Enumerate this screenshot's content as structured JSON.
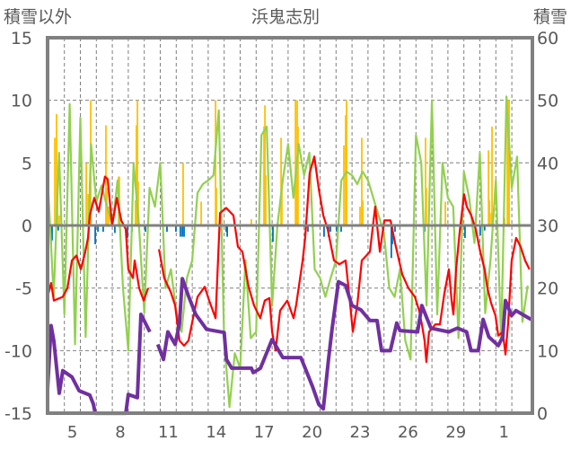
{
  "chart_data": {
    "type": "line",
    "title": "浜鬼志別",
    "ylabel_left": "積雪以外",
    "ylabel_right": "積雪",
    "ylim_left": [
      -15,
      15
    ],
    "ylim_right": [
      0,
      60
    ],
    "xlim_day": [
      3.95,
      34.2
    ],
    "grid": true,
    "y_ticks_left": [
      "15",
      "10",
      "5",
      "0",
      "-5",
      "-10",
      "-15"
    ],
    "y_ticks_left_values": [
      15,
      10,
      5,
      0,
      -5,
      -10,
      -15
    ],
    "y_ticks_right": [
      "60",
      "50",
      "40",
      "30",
      "20",
      "10",
      "0"
    ],
    "y_ticks_right_values": [
      60,
      50,
      40,
      30,
      20,
      10,
      0
    ],
    "x_ticks": [
      {
        "day": 5,
        "label": "5"
      },
      {
        "day": 8,
        "label": "8"
      },
      {
        "day": 11,
        "label": "11"
      },
      {
        "day": 14,
        "label": "14"
      },
      {
        "day": 17,
        "label": "17"
      },
      {
        "day": 20,
        "label": "20"
      },
      {
        "day": 23,
        "label": "23"
      },
      {
        "day": 26,
        "label": "26"
      },
      {
        "day": 29,
        "label": "29"
      },
      {
        "day": 32,
        "label": "1"
      }
    ],
    "colors": {
      "red": "#FF0000",
      "green": "#92D050",
      "purple": "#7030A0",
      "yellow": "#FFC000",
      "blue": "#0070C0",
      "axis": "#808080",
      "text": "#595959"
    },
    "series": [
      {
        "name": "green",
        "axis": "left",
        "start_day": 4.0,
        "step_day": 0.3333,
        "values": [
          2.6,
          -5.7,
          5.8,
          -7.1,
          9.7,
          -9.5,
          8.6,
          -8.9,
          6.5,
          1.9,
          3.2,
          1.5,
          0,
          3.6,
          -5,
          -10,
          5,
          0,
          -7,
          3,
          1.5,
          5,
          -5,
          -3.5,
          -6.9,
          -8.5,
          -4.2,
          -2.8,
          2.6,
          3.3,
          3.6,
          4,
          9.2,
          -9.2,
          -14.5,
          -10.2,
          -11.4,
          -2.8,
          -9,
          -8.5,
          7.2,
          7.9,
          -6.4,
          0,
          3.6,
          6.5,
          2.2,
          6.5,
          4,
          5.8,
          -3.5,
          -4.2,
          -5.7,
          -4.2,
          -2.8,
          3.6,
          4.3,
          4,
          3.3,
          4.3,
          3.6,
          2.2,
          0.8,
          -0.6,
          -5,
          -5.7,
          -3.5,
          -9.2,
          -10.7,
          7.2,
          5,
          -6.4,
          10,
          -7.1,
          5,
          2.2,
          1.5,
          -9,
          4.3,
          2.2,
          -1.4,
          5.8,
          -7,
          -2.8,
          3.6,
          -9.2,
          10.3,
          3,
          5.5,
          -7.7,
          -4.8
        ]
      },
      {
        "name": "red",
        "axis": "left",
        "points": [
          [
            3.95,
            -5.7
          ],
          [
            4.17,
            -4.6
          ],
          [
            4.34,
            -6
          ],
          [
            4.9,
            -5.7
          ],
          [
            5.19,
            -5
          ],
          [
            5.47,
            -2.8
          ],
          [
            5.75,
            -2.4
          ],
          [
            6.03,
            -3.5
          ],
          [
            6.31,
            -2.1
          ],
          [
            6.48,
            -1
          ],
          [
            6.59,
            0.8
          ],
          [
            6.87,
            2.2
          ],
          [
            7.15,
            1.1
          ],
          [
            7.54,
            3.9
          ],
          [
            7.71,
            3.7
          ],
          [
            7.99,
            0
          ],
          [
            8.28,
            2.2
          ],
          [
            8.56,
            0.4
          ],
          [
            8.84,
            -0.3
          ],
          [
            9.0,
            -3.5
          ],
          [
            9.29,
            -4.2
          ],
          [
            9.4,
            -2.8
          ],
          [
            9.68,
            -5
          ],
          [
            9.96,
            -6
          ],
          [
            10.24,
            -5
          ],
          null,
          [
            10.92,
            -1.9
          ],
          [
            11.25,
            -4.2
          ],
          [
            11.65,
            -5.3
          ],
          [
            11.93,
            -6.4
          ],
          [
            12.2,
            -9.2
          ],
          [
            12.49,
            -9.6
          ],
          [
            12.77,
            -9.2
          ],
          [
            13.05,
            -7.4
          ],
          [
            13.33,
            -5.7
          ],
          [
            13.78,
            -4.9
          ],
          [
            14.06,
            -6
          ],
          [
            14.46,
            -7.4
          ],
          [
            14.74,
            1
          ],
          [
            15.13,
            1.4
          ],
          [
            15.58,
            0.8
          ],
          [
            15.86,
            -1.7
          ],
          [
            16.14,
            -2.1
          ],
          [
            16.53,
            -4.9
          ],
          [
            16.87,
            -6.4
          ],
          [
            17.26,
            -7.4
          ],
          [
            17.54,
            -6
          ],
          [
            17.83,
            -5.8
          ],
          [
            18.0,
            -8.5
          ],
          [
            18.22,
            -10
          ],
          [
            18.5,
            -6.8
          ],
          [
            18.95,
            -6
          ],
          [
            19.34,
            -7.4
          ],
          [
            19.51,
            -6.3
          ],
          [
            19.91,
            -2.8
          ],
          [
            20.07,
            -1
          ],
          [
            20.35,
            4.2
          ],
          [
            20.64,
            5.5
          ],
          [
            20.92,
            2.9
          ],
          [
            21.2,
            0.8
          ],
          [
            21.48,
            -0.3
          ],
          [
            21.87,
            -2.8
          ],
          [
            22.21,
            -3.1
          ],
          [
            22.6,
            -2.8
          ],
          [
            22.88,
            -6.3
          ],
          [
            23.05,
            -8.5
          ],
          [
            23.33,
            -6.3
          ],
          [
            23.61,
            -2.8
          ],
          [
            23.9,
            -2.4
          ],
          [
            24.12,
            -2.1
          ],
          [
            24.45,
            1.5
          ],
          [
            24.74,
            -2.1
          ],
          [
            25.02,
            0.4
          ],
          [
            25.41,
            0.4
          ],
          [
            25.69,
            -1.4
          ],
          [
            26.14,
            -3.9
          ],
          [
            26.53,
            -5
          ],
          [
            26.93,
            -5.7
          ],
          [
            27.2,
            -6.8
          ],
          [
            27.37,
            -7.9
          ],
          [
            27.54,
            -9.2
          ],
          [
            27.65,
            -10.9
          ],
          [
            27.82,
            -8.5
          ],
          [
            28.22,
            -7.9
          ],
          [
            28.5,
            -7.9
          ],
          [
            28.78,
            -5.4
          ],
          [
            29.06,
            -3.5
          ],
          [
            29.23,
            -6
          ],
          [
            29.34,
            -7.1
          ],
          [
            29.51,
            -3.5
          ],
          [
            29.73,
            -0.6
          ],
          [
            30.01,
            2.5
          ],
          [
            30.18,
            1.5
          ],
          [
            30.46,
            0.8
          ],
          [
            30.74,
            -0.3
          ],
          [
            31.02,
            -2.1
          ],
          [
            31.3,
            -3.5
          ],
          [
            31.47,
            -5
          ],
          [
            31.7,
            -6.2
          ],
          [
            31.98,
            -7.2
          ],
          [
            32.15,
            -8.8
          ],
          [
            32.43,
            -8.5
          ],
          [
            32.6,
            -10.3
          ],
          [
            32.77,
            -7.8
          ],
          [
            32.99,
            -2.8
          ],
          [
            33.27,
            -1
          ],
          [
            33.55,
            -1.7
          ],
          [
            33.83,
            -2.8
          ],
          [
            34.1,
            -3.5
          ]
        ]
      },
      {
        "name": "purple",
        "axis": "right",
        "points": [
          [
            3.95,
            3.9
          ],
          [
            4.17,
            14
          ],
          [
            4.34,
            11.5
          ],
          [
            4.68,
            3.2
          ],
          [
            4.9,
            6.8
          ],
          [
            5.47,
            5.8
          ],
          [
            5.92,
            3.6
          ],
          [
            6.59,
            2.9
          ],
          [
            6.81,
            1.5
          ],
          [
            6.93,
            0
          ],
          [
            8.84,
            0
          ],
          [
            9.0,
            3
          ],
          [
            9.57,
            2.5
          ],
          [
            9.79,
            15.8
          ],
          [
            10.35,
            13
          ],
          null,
          [
            10.85,
            11
          ],
          [
            11.2,
            8.6
          ],
          [
            11.48,
            13
          ],
          [
            11.93,
            11
          ],
          [
            12.2,
            14.3
          ],
          [
            12.38,
            21.5
          ],
          [
            12.77,
            18.7
          ],
          [
            13.22,
            15.8
          ],
          [
            13.9,
            13.4
          ],
          [
            15.0,
            12.9
          ],
          [
            15.14,
            8.6
          ],
          [
            15.47,
            7.2
          ],
          [
            16.7,
            7.2
          ],
          [
            16.82,
            6.5
          ],
          [
            17.27,
            7.2
          ],
          [
            18.0,
            11.8
          ],
          [
            18.67,
            8.9
          ],
          [
            19.8,
            8.9
          ],
          [
            20.07,
            7.2
          ],
          [
            20.52,
            4.3
          ],
          [
            20.92,
            1.4
          ],
          [
            21.2,
            0.7
          ],
          [
            21.53,
            8.6
          ],
          [
            21.76,
            13.6
          ],
          [
            22.15,
            21
          ],
          [
            22.6,
            20.4
          ],
          [
            23.0,
            17.2
          ],
          [
            23.56,
            16.5
          ],
          [
            24.12,
            14.8
          ],
          [
            24.57,
            14.8
          ],
          [
            24.85,
            10
          ],
          [
            25.4,
            10
          ],
          [
            25.8,
            14.4
          ],
          [
            26.0,
            13.2
          ],
          [
            27.1,
            13
          ],
          [
            27.37,
            17.2
          ],
          [
            27.93,
            13.6
          ],
          [
            29.05,
            13
          ],
          [
            29.6,
            13.6
          ],
          [
            30.17,
            13
          ],
          [
            30.45,
            10
          ],
          [
            30.9,
            10
          ],
          [
            31.2,
            15
          ],
          [
            31.56,
            12.2
          ],
          [
            32.15,
            10.8
          ],
          [
            32.43,
            12.2
          ],
          [
            32.6,
            18
          ],
          [
            32.98,
            15.6
          ],
          [
            33.26,
            16.4
          ],
          [
            34.2,
            15
          ]
        ]
      },
      {
        "name": "yellow-bars",
        "axis": "left",
        "points": [
          [
            4.4,
            7
          ],
          [
            4.51,
            8.9
          ],
          [
            4.57,
            3
          ],
          [
            4.68,
            0.8
          ],
          [
            6.37,
            5
          ],
          [
            6.48,
            2.5
          ],
          [
            6.65,
            10
          ],
          [
            7.6,
            8
          ],
          [
            7.66,
            3
          ],
          [
            7.77,
            1.5
          ],
          [
            8.39,
            3.9
          ],
          [
            8.44,
            3.9
          ],
          [
            9.45,
            2
          ],
          [
            9.51,
            8
          ],
          [
            9.57,
            10
          ],
          [
            9.62,
            3.5
          ],
          [
            12.43,
            5
          ],
          [
            13.56,
            1.9
          ],
          [
            14.46,
            10
          ],
          [
            14.51,
            3
          ],
          [
            16.7,
            0.5
          ],
          [
            17.49,
            7.9
          ],
          [
            17.55,
            9.6
          ],
          [
            17.6,
            4
          ],
          [
            18.56,
            7
          ],
          [
            18.61,
            3
          ],
          [
            19.46,
            10
          ],
          [
            19.51,
            5
          ],
          [
            19.57,
            10
          ],
          [
            19.62,
            7.9
          ],
          [
            22.49,
            6.4
          ],
          [
            22.6,
            8.8
          ],
          [
            22.66,
            10
          ],
          [
            23.5,
            1.5
          ],
          [
            23.61,
            7
          ],
          [
            23.67,
            2
          ],
          [
            27.6,
            7
          ],
          [
            27.65,
            3
          ],
          [
            28.56,
            0.6
          ],
          [
            28.84,
            1.9
          ],
          [
            31.54,
            6
          ],
          [
            31.6,
            2
          ],
          [
            31.71,
            1
          ],
          [
            31.76,
            7.9
          ],
          [
            32.55,
            0.6
          ],
          [
            32.72,
            10
          ],
          [
            32.77,
            10
          ],
          [
            32.83,
            10
          ]
        ]
      },
      {
        "name": "blue-bars",
        "axis": "left",
        "points": [
          [
            4.17,
            -1.5
          ],
          [
            4.23,
            -1.2
          ],
          [
            4.62,
            -0.4
          ],
          [
            6.93,
            -1.5
          ],
          [
            7.1,
            -0.5
          ],
          [
            7.43,
            -0.5
          ],
          [
            8.16,
            -0.6
          ],
          [
            8.95,
            -1
          ],
          [
            9.23,
            -0.5
          ],
          [
            10.07,
            -0.5
          ],
          [
            11.42,
            -0.5
          ],
          [
            11.98,
            -0.5
          ],
          [
            12.26,
            -0.9
          ],
          [
            12.38,
            -0.9
          ],
          [
            12.49,
            -0.9
          ],
          [
            15.13,
            -0.5
          ],
          [
            15.19,
            -0.9
          ],
          [
            18.05,
            -1.3
          ],
          [
            20.24,
            -0.5
          ],
          [
            21.25,
            -0.9
          ],
          [
            21.53,
            -0.9
          ],
          [
            21.65,
            -0.5
          ],
          [
            22.04,
            -0.5
          ],
          [
            22.32,
            -0.5
          ],
          [
            25.46,
            -2.6
          ],
          [
            25.52,
            -1.5
          ],
          [
            25.69,
            -0.5
          ],
          [
            27.54,
            -0.5
          ],
          [
            30.07,
            -1
          ],
          [
            31.02,
            -0.8
          ],
          [
            31.3,
            -0.4
          ],
          [
            32.48,
            -0.5
          ]
        ]
      }
    ]
  }
}
